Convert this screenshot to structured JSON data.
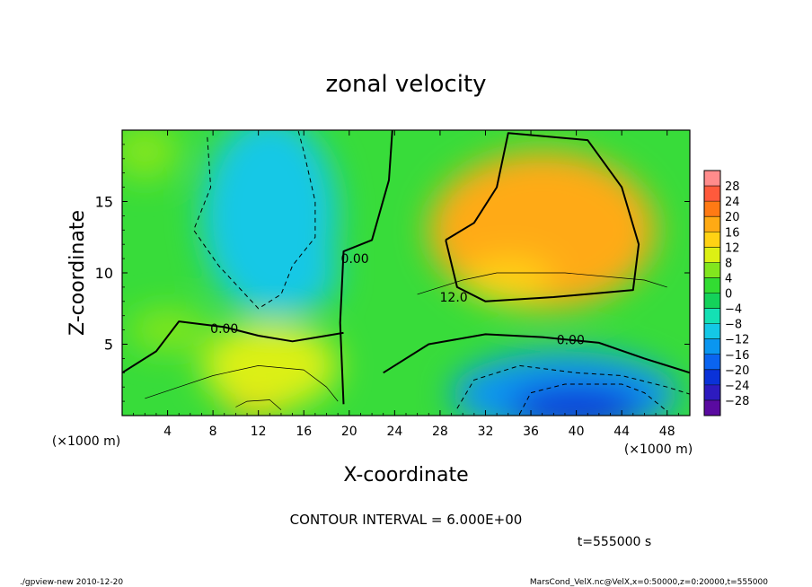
{
  "chart_data": {
    "type": "heatmap",
    "title": "zonal velocity",
    "xlabel": "X-coordinate",
    "ylabel": "Z-coordinate",
    "x_unit_left": "(×1000 m)",
    "x_unit_right": "(×1000 m)",
    "xlim": [
      0,
      50
    ],
    "ylim": [
      0,
      20
    ],
    "x_ticks": [
      4,
      8,
      12,
      16,
      20,
      24,
      28,
      32,
      36,
      40,
      44,
      48
    ],
    "x_tick_labels": [
      "4",
      "8",
      "12",
      "16",
      "20",
      "24",
      "28",
      "32",
      "36",
      "40",
      "44",
      "48"
    ],
    "y_ticks": [
      5,
      10,
      15
    ],
    "y_tick_labels": [
      "5",
      "10",
      "15"
    ],
    "colorbar": {
      "levels": [
        -30,
        -28,
        -24,
        -20,
        -16,
        -12,
        -8,
        -4,
        0,
        4,
        8,
        12,
        16,
        20,
        24,
        28,
        30
      ],
      "labels": [
        "28",
        "24",
        "20",
        "16",
        "12",
        "8",
        "4",
        "0",
        "−4",
        "−8",
        "−12",
        "−16",
        "−20",
        "−24",
        "−28"
      ],
      "colors": [
        "#5a0aa0",
        "#2d1bbf",
        "#0a32d8",
        "#0a64f0",
        "#0a96f0",
        "#14c8e6",
        "#14e0b4",
        "#14d25a",
        "#32dc32",
        "#82e61e",
        "#dcf014",
        "#ffd214",
        "#ffaa14",
        "#ff7a14",
        "#ff5a3c",
        "#ff8c8c"
      ]
    },
    "contour_interval": "CONTOUR INTERVAL = 6.000E+00",
    "contour_labels": [
      "0.00",
      "0.00",
      "0.00",
      "12.0"
    ],
    "time_label": "t=555000 s",
    "footer_left": "./gpview-new  2010-12-20",
    "footer_right": "MarsCond_VelX.nc@VelX,x=0:50000,z=0:20000,t=555000",
    "field_blobs": [
      {
        "x": 37,
        "z": 13,
        "rx": 10,
        "rz": 5.5,
        "value": 18
      },
      {
        "x": 34,
        "z": 9.5,
        "rx": 4,
        "rz": 1.5,
        "value": 14
      },
      {
        "x": 12,
        "z": 1.2,
        "rx": 3,
        "rz": 1.4,
        "value": 16
      },
      {
        "x": 13,
        "z": 3.5,
        "rx": 6,
        "rz": 3.0,
        "value": 8
      },
      {
        "x": 39,
        "z": 1.5,
        "rx": 10,
        "rz": 3.0,
        "value": -14
      },
      {
        "x": 40,
        "z": 0.6,
        "rx": 6,
        "rz": 1.5,
        "value": -22
      },
      {
        "x": 13,
        "z": 14,
        "rx": 6,
        "rz": 7,
        "value": -9
      },
      {
        "x": 14,
        "z": 10,
        "rx": 5,
        "rz": 3,
        "value": -12
      },
      {
        "x": 2,
        "z": 18.5,
        "rx": 3,
        "rz": 2,
        "value": 6
      },
      {
        "x": 4,
        "z": 6,
        "rx": 3.5,
        "rz": 1.5,
        "value": 5
      }
    ],
    "contours": [
      {
        "value": 0,
        "style": "solid",
        "label": "0.00",
        "label_at": [
          20.5,
          11.0
        ],
        "points": [
          [
            19.5,
            0.8
          ],
          [
            19.2,
            6.5
          ],
          [
            19.5,
            11.5
          ],
          [
            22,
            12.3
          ],
          [
            23.5,
            16.5
          ],
          [
            23.8,
            20
          ]
        ]
      },
      {
        "value": 0,
        "style": "solid",
        "label": "0.00",
        "label_at": [
          9,
          6.1
        ],
        "points": [
          [
            0,
            3.0
          ],
          [
            3,
            4.5
          ],
          [
            5,
            6.6
          ],
          [
            9,
            6.2
          ],
          [
            12,
            5.6
          ],
          [
            15,
            5.2
          ],
          [
            18,
            5.6
          ],
          [
            19.5,
            5.8
          ]
        ]
      },
      {
        "value": 0,
        "style": "solid",
        "label": "0.00",
        "label_at": [
          39.5,
          5.3
        ],
        "points": [
          [
            23,
            3.0
          ],
          [
            27,
            5.0
          ],
          [
            32,
            5.7
          ],
          [
            37,
            5.5
          ],
          [
            42,
            5.1
          ],
          [
            46,
            4.0
          ],
          [
            50,
            3.0
          ]
        ]
      },
      {
        "value": 12,
        "style": "solid",
        "label": "12.0",
        "label_at": [
          29.2,
          8.3
        ],
        "points": [
          [
            28.5,
            12.3
          ],
          [
            29.5,
            9.0
          ],
          [
            32,
            8.0
          ],
          [
            38,
            8.3
          ],
          [
            45,
            8.8
          ],
          [
            45.5,
            12
          ],
          [
            44,
            16
          ],
          [
            41,
            19.3
          ],
          [
            34,
            19.8
          ],
          [
            33,
            16
          ],
          [
            31,
            13.5
          ],
          [
            28.5,
            12.3
          ]
        ]
      },
      {
        "value": -6,
        "style": "dashed",
        "label": "",
        "label_at": [
          0,
          0
        ],
        "points": [
          [
            7.5,
            19.5
          ],
          [
            7.8,
            16
          ],
          [
            6.3,
            13
          ],
          [
            8.5,
            10.5
          ],
          [
            12,
            7.5
          ],
          [
            14,
            8.5
          ],
          [
            15,
            10.5
          ],
          [
            17,
            12.5
          ],
          [
            17,
            15
          ],
          [
            16,
            18.5
          ],
          [
            15.5,
            20
          ]
        ]
      },
      {
        "value": -6,
        "style": "dashed",
        "label": "",
        "label_at": [
          0,
          0
        ],
        "points": [
          [
            29.5,
            0.5
          ],
          [
            31,
            2.5
          ],
          [
            35,
            3.5
          ],
          [
            40,
            3.0
          ],
          [
            44,
            2.8
          ],
          [
            48,
            2.0
          ],
          [
            50,
            1.5
          ]
        ]
      },
      {
        "value": -12,
        "style": "dashed",
        "label": "",
        "label_at": [
          0,
          0
        ],
        "points": [
          [
            35,
            0.1
          ],
          [
            36,
            1.6
          ],
          [
            39,
            2.2
          ],
          [
            44,
            2.2
          ],
          [
            46,
            1.6
          ],
          [
            48,
            0.3
          ]
        ]
      },
      {
        "value": 6,
        "style": "thin",
        "label": "",
        "label_at": [
          0,
          0
        ],
        "points": [
          [
            10,
            0.6
          ],
          [
            11,
            1.0
          ],
          [
            13,
            1.1
          ],
          [
            14,
            0.4
          ]
        ]
      },
      {
        "value": 6,
        "style": "thin",
        "label": "",
        "label_at": [
          0,
          0
        ],
        "points": [
          [
            26,
            8.5
          ],
          [
            30,
            9.5
          ],
          [
            33,
            10.0
          ],
          [
            39,
            10.0
          ],
          [
            46,
            9.5
          ],
          [
            48,
            9.0
          ]
        ]
      },
      {
        "value": 6,
        "style": "thin",
        "label": "",
        "label_at": [
          0,
          0
        ],
        "points": [
          [
            2,
            1.2
          ],
          [
            5,
            2.0
          ],
          [
            8,
            2.8
          ],
          [
            12,
            3.5
          ],
          [
            16,
            3.2
          ],
          [
            18,
            2.0
          ],
          [
            19,
            1.0
          ]
        ]
      }
    ]
  }
}
